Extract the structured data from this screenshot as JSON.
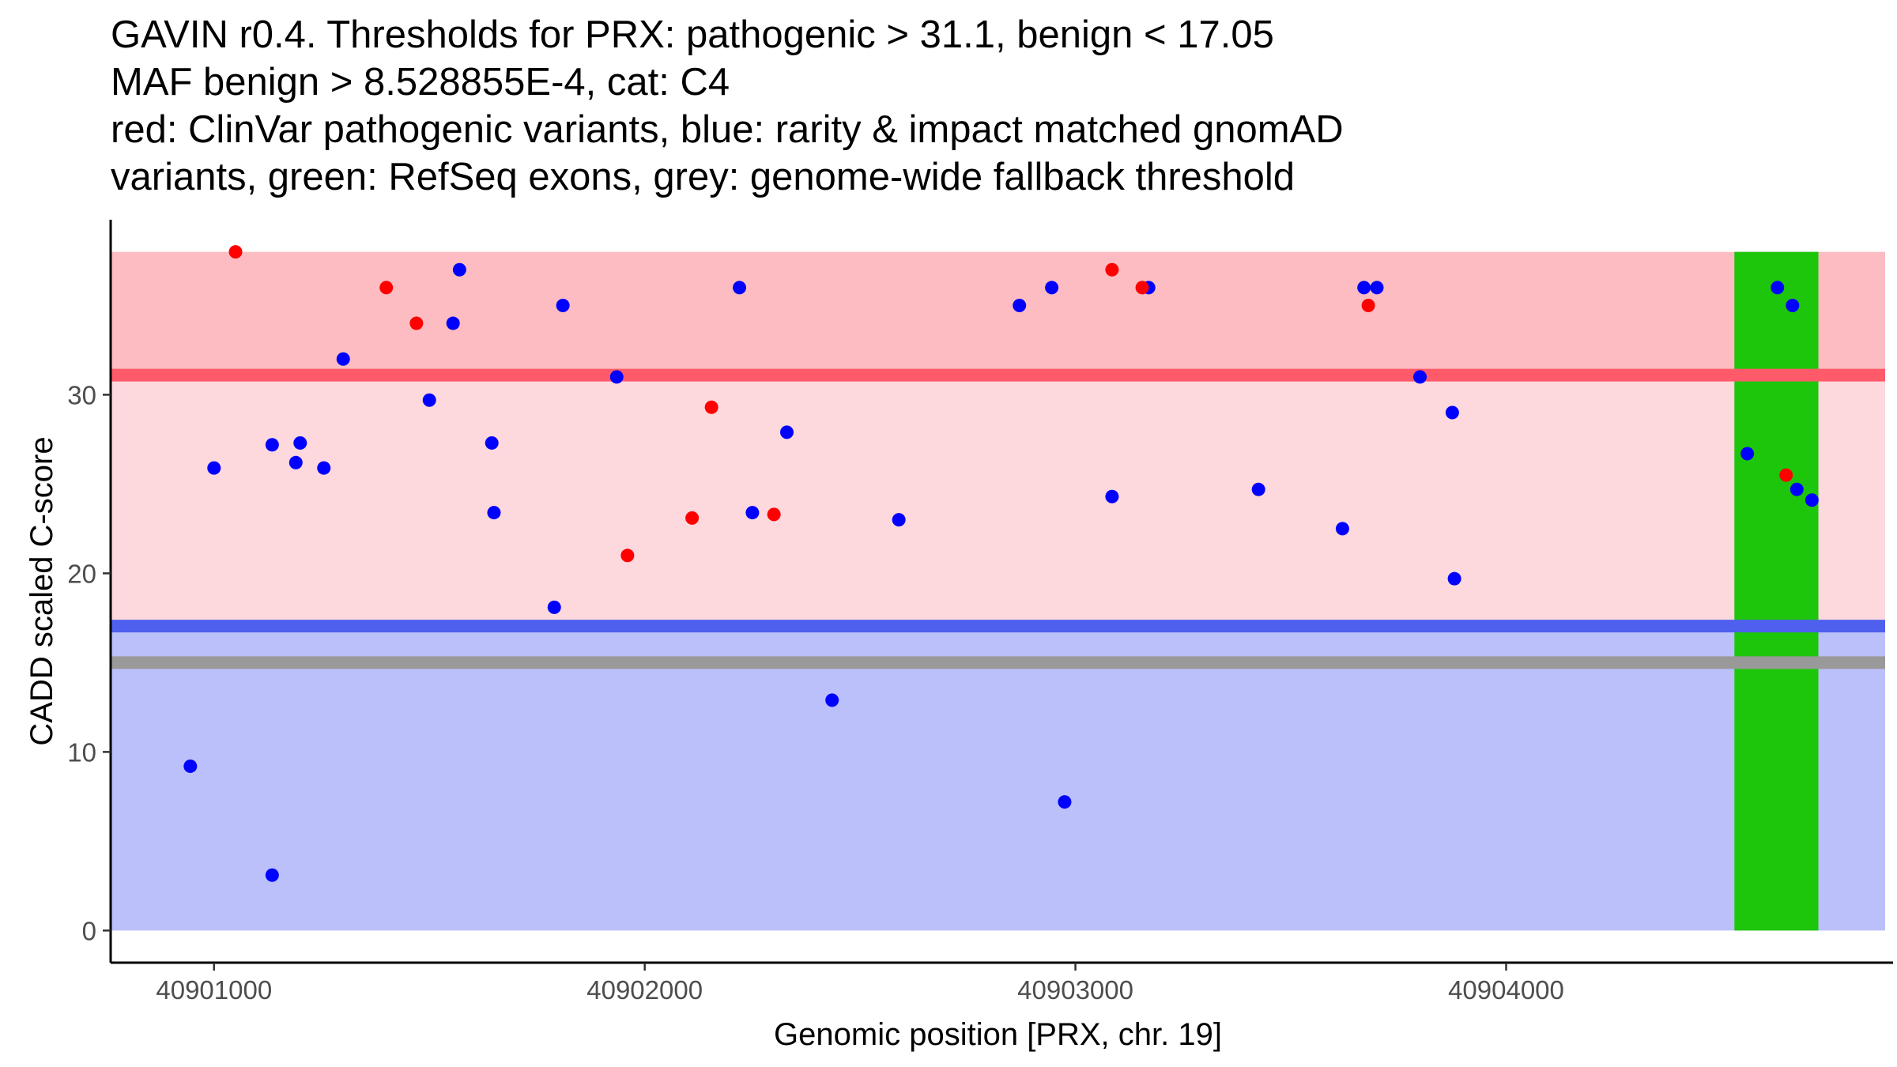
{
  "chart_data": {
    "type": "scatter",
    "title_lines": [
      "GAVIN r0.4. Thresholds for PRX: pathogenic > 31.1, benign < 17.05",
      "MAF benign > 8.528855E-4, cat: C4",
      "red: ClinVar pathogenic variants, blue: rarity & impact matched gnomAD",
      "variants, green: RefSeq exons, grey: genome-wide fallback threshold"
    ],
    "xlabel": "Genomic position [PRX, chr. 19]",
    "ylabel": "CADD scaled C-score",
    "xlim": [
      40900760,
      40904880
    ],
    "ylim": [
      -1.8,
      39.8
    ],
    "x_ticks": [
      {
        "value": 40901000,
        "label": "40901000"
      },
      {
        "value": 40902000,
        "label": "40902000"
      },
      {
        "value": 40903000,
        "label": "40903000"
      },
      {
        "value": 40904000,
        "label": "40904000"
      }
    ],
    "y_ticks": [
      {
        "value": 0,
        "label": "0"
      },
      {
        "value": 10,
        "label": "10"
      },
      {
        "value": 20,
        "label": "20"
      },
      {
        "value": 30,
        "label": "30"
      }
    ],
    "x_range": [
      40900760,
      40904880
    ],
    "bands": [
      {
        "name": "pathogenic-high-band",
        "y0": 31.1,
        "y1": 38,
        "color": "#fcbcc2"
      },
      {
        "name": "intermediate-band",
        "y0": 17.05,
        "y1": 31.1,
        "color": "#fdd8dd"
      },
      {
        "name": "benign-band",
        "y0": 0,
        "y1": 17.05,
        "color": "#bbc0fb"
      }
    ],
    "thresholds": [
      {
        "name": "pathogenic-threshold-line",
        "y": 31.1,
        "color": "#ff5a6a"
      },
      {
        "name": "benign-threshold-line",
        "y": 17.05,
        "color": "#4f5fee"
      },
      {
        "name": "fallback-threshold-line",
        "y": 15.0,
        "color": "#999999"
      }
    ],
    "exons": [
      {
        "name": "refseq-exon",
        "x0": 40904530,
        "x1": 40904725,
        "y0": 0,
        "y1": 38,
        "color": "#1dc60a"
      }
    ],
    "series": [
      {
        "name": "gnomAD variants",
        "color": "#0000ff",
        "points": [
          [
            40900945,
            9.2
          ],
          [
            40901000,
            25.9
          ],
          [
            40901135,
            3.1
          ],
          [
            40901135,
            27.2
          ],
          [
            40901190,
            26.2
          ],
          [
            40901200,
            27.3
          ],
          [
            40901255,
            25.9
          ],
          [
            40901300,
            32.0
          ],
          [
            40901500,
            29.7
          ],
          [
            40901555,
            34.0
          ],
          [
            40901570,
            37.0
          ],
          [
            40901645,
            27.3
          ],
          [
            40901650,
            23.4
          ],
          [
            40901790,
            18.1
          ],
          [
            40901810,
            35.0
          ],
          [
            40901935,
            31.0
          ],
          [
            40902220,
            36.0
          ],
          [
            40902250,
            23.4
          ],
          [
            40902330,
            27.9
          ],
          [
            40902435,
            12.9
          ],
          [
            40902590,
            23.0
          ],
          [
            40902870,
            35.0
          ],
          [
            40902945,
            36.0
          ],
          [
            40902975,
            7.2
          ],
          [
            40903085,
            24.3
          ],
          [
            40903170,
            36.0
          ],
          [
            40903425,
            24.7
          ],
          [
            40903620,
            22.5
          ],
          [
            40903670,
            36.0
          ],
          [
            40903700,
            36.0
          ],
          [
            40903800,
            31.0
          ],
          [
            40903875,
            29.0
          ],
          [
            40903880,
            19.7
          ],
          [
            40904560,
            26.7
          ],
          [
            40904630,
            36.0
          ],
          [
            40904665,
            35.0
          ],
          [
            40904675,
            24.7
          ],
          [
            40904710,
            24.1
          ]
        ]
      },
      {
        "name": "ClinVar pathogenic variants",
        "color": "#ff0000",
        "points": [
          [
            40901050,
            38.0
          ],
          [
            40901400,
            36.0
          ],
          [
            40901470,
            34.0
          ],
          [
            40901960,
            21.0
          ],
          [
            40902110,
            23.1
          ],
          [
            40902155,
            29.3
          ],
          [
            40902300,
            23.3
          ],
          [
            40903085,
            37.0
          ],
          [
            40903155,
            36.0
          ],
          [
            40903680,
            35.0
          ],
          [
            40904650,
            25.5
          ]
        ]
      }
    ]
  }
}
